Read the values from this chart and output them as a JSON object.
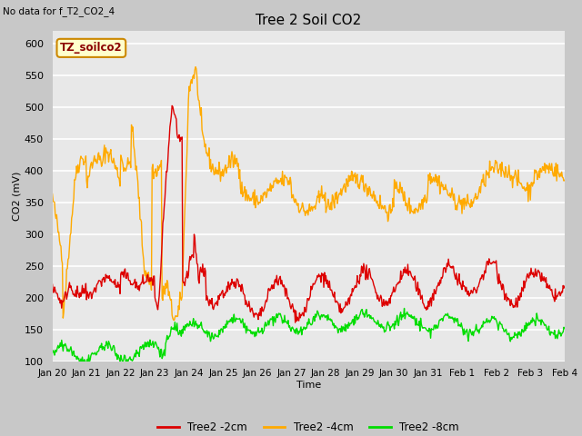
{
  "title": "Tree 2 Soil CO2",
  "no_data_label": "No data for f_T2_CO2_4",
  "tz_label": "TZ_soilco2",
  "xlabel": "Time",
  "ylabel": "CO2 (mV)",
  "ylim": [
    100,
    620
  ],
  "yticks": [
    100,
    150,
    200,
    250,
    300,
    350,
    400,
    450,
    500,
    550,
    600
  ],
  "fig_bg_color": "#c8c8c8",
  "plot_bg_color": "#e8e8e8",
  "line_colors": {
    "2cm": "#dd0000",
    "4cm": "#ffaa00",
    "8cm": "#00dd00"
  },
  "legend": [
    {
      "label": "Tree2 -2cm",
      "color": "#dd0000"
    },
    {
      "label": "Tree2 -4cm",
      "color": "#ffaa00"
    },
    {
      "label": "Tree2 -8cm",
      "color": "#00dd00"
    }
  ],
  "x_tick_labels": [
    "Jan 20",
    "Jan 21",
    "Jan 22",
    "Jan 23",
    "Jan 24",
    "Jan 25",
    "Jan 26",
    "Jan 27",
    "Jan 28",
    "Jan 29",
    "Jan 30",
    "Jan 31",
    "Feb 1",
    "Feb 2",
    "Feb 3",
    "Feb 4"
  ]
}
